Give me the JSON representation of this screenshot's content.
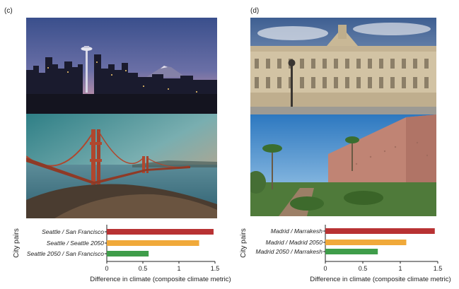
{
  "panels": [
    {
      "label": "(c)"
    },
    {
      "label": "(d)"
    }
  ],
  "photos": [
    {
      "subject": "seattle-skyline-photo"
    },
    {
      "subject": "golden-gate-bridge-photo"
    },
    {
      "subject": "madrid-royal-palace-photo"
    },
    {
      "subject": "marrakesh-city-wall-photo"
    }
  ],
  "chart_data": [
    {
      "type": "bar",
      "orientation": "horizontal",
      "categories": [
        "Seattle / San Francisco",
        "Seattle / Seattle 2050",
        "Seattle 2050 / San Francisco"
      ],
      "values": [
        1.48,
        1.28,
        0.58
      ],
      "colors": [
        "#b83233",
        "#f0a93a",
        "#3f9d4a"
      ],
      "xlabel": "Difference in climate (composite climate metric)",
      "ylabel": "City pairs",
      "xlim": [
        0,
        1.5
      ],
      "xticks": [
        "0",
        "0.5",
        "1",
        "1.5"
      ],
      "grid": false
    },
    {
      "type": "bar",
      "orientation": "horizontal",
      "categories": [
        "Madrid / Marrakesh",
        "Madrid / Madrid 2050",
        "Madrid 2050 / Marrakesh"
      ],
      "values": [
        1.46,
        1.08,
        0.7
      ],
      "colors": [
        "#b83233",
        "#f0a93a",
        "#3f9d4a"
      ],
      "xlabel": "Difference in climate (composite climate metric)",
      "ylabel": "City pairs",
      "xlim": [
        0,
        1.5
      ],
      "xticks": [
        "0",
        "0.5",
        "1",
        "1.5"
      ],
      "grid": false
    }
  ]
}
